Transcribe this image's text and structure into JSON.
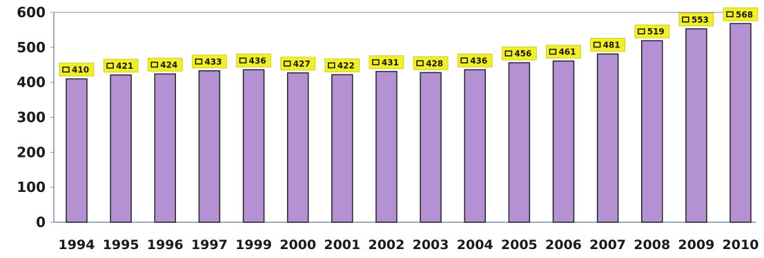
{
  "chart_data": {
    "type": "bar",
    "categories": [
      "1994",
      "1995",
      "1996",
      "1997",
      "1999",
      "2000",
      "2001",
      "2002",
      "2003",
      "2004",
      "2005",
      "2006",
      "2007",
      "2008",
      "2009",
      "2010"
    ],
    "series": [
      {
        "values": [
          410,
          421,
          424,
          433,
          436,
          427,
          422,
          431,
          428,
          436,
          456,
          461,
          481,
          519,
          553,
          568
        ]
      }
    ],
    "data_labels": [
      "410",
      "421",
      "424",
      "433",
      "436",
      "427",
      "422",
      "431",
      "428",
      "436",
      "456",
      "461",
      "481",
      "519",
      "553",
      "568"
    ],
    "y_ticks": [
      "0",
      "100",
      "200",
      "300",
      "400",
      "500",
      "600"
    ],
    "ylim": [
      0,
      600
    ],
    "grid": false,
    "legend": "none",
    "colors": {
      "bar_fill": "#b491d2",
      "bar_stroke": "#222222",
      "label_background": "#f1ee2a",
      "axis": "#7f8fa6"
    }
  }
}
